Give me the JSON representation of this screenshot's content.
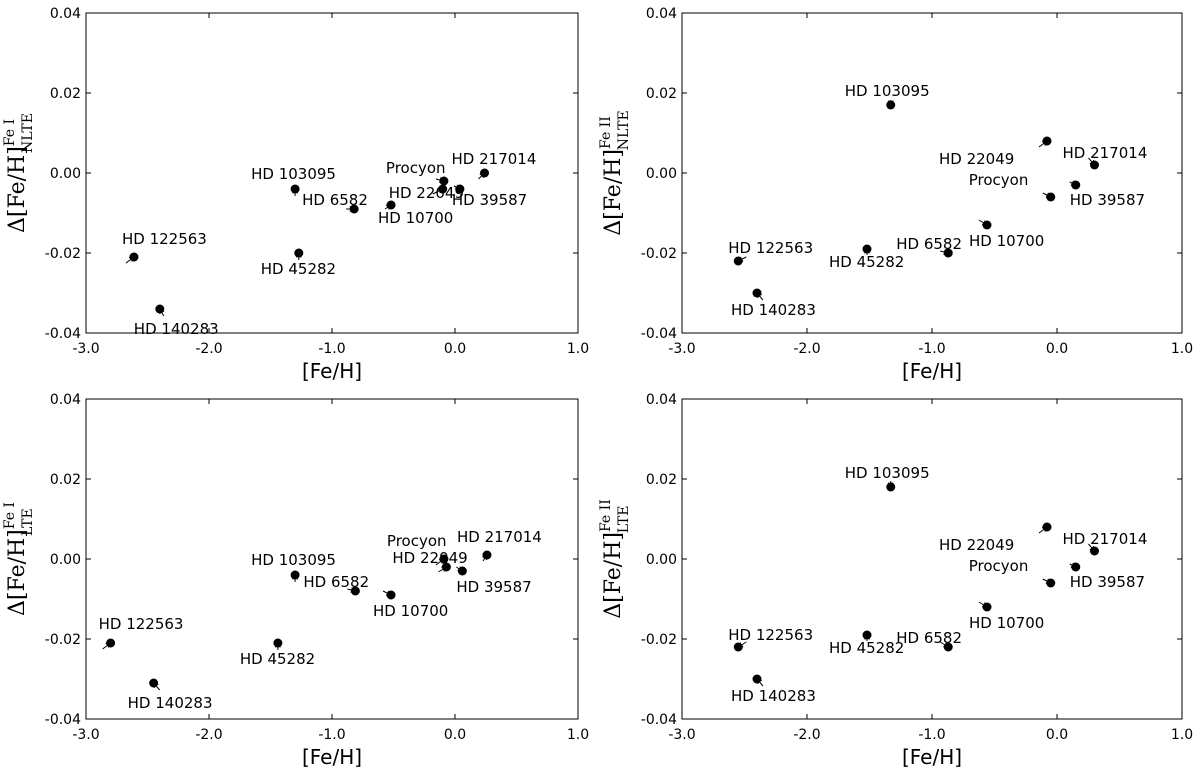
{
  "chart_data": [
    {
      "type": "scatter",
      "xlabel": "[Fe/H]",
      "ylabel": {
        "prefix": "Δ[Fe/H]",
        "sup": "Fe I",
        "sub": "NLTE"
      },
      "xlim": [
        -3.0,
        1.0
      ],
      "ylim": [
        -0.04,
        0.04
      ],
      "xticks": [
        -3.0,
        -2.0,
        -1.0,
        0.0,
        1.0
      ],
      "xtick_labels": [
        "-3.0",
        "-2.0",
        "-1.0",
        "0.0",
        "1.0"
      ],
      "yticks": [
        -0.04,
        -0.02,
        0.0,
        0.02,
        0.04
      ],
      "ytick_labels": [
        "-0.04",
        "-0.02",
        "0.00",
        "0.02",
        "0.04"
      ],
      "points": [
        {
          "name": "HD 122563",
          "x": -2.61,
          "y": -0.021
        },
        {
          "name": "HD 140283",
          "x": -2.4,
          "y": -0.034
        },
        {
          "name": "HD 103095",
          "x": -1.3,
          "y": -0.004
        },
        {
          "name": "HD 45282",
          "x": -1.27,
          "y": -0.02
        },
        {
          "name": "HD 6582",
          "x": -0.82,
          "y": -0.009
        },
        {
          "name": "HD 10700",
          "x": -0.52,
          "y": -0.008
        },
        {
          "name": "HD 22049",
          "x": -0.1,
          "y": -0.004
        },
        {
          "name": "Procyon",
          "x": -0.09,
          "y": -0.002
        },
        {
          "name": "HD 39587",
          "x": 0.04,
          "y": -0.004
        },
        {
          "name": "HD 217014",
          "x": 0.24,
          "y": 0.0
        }
      ]
    },
    {
      "type": "scatter",
      "xlabel": "[Fe/H]",
      "ylabel": {
        "prefix": "Δ[Fe/H]",
        "sup": "Fe II",
        "sub": "NLTE"
      },
      "xlim": [
        -3.0,
        1.0
      ],
      "ylim": [
        -0.04,
        0.04
      ],
      "xticks": [
        -3.0,
        -2.0,
        -1.0,
        0.0,
        1.0
      ],
      "xtick_labels": [
        "-3.0",
        "-2.0",
        "-1.0",
        "0.0",
        "1.0"
      ],
      "yticks": [
        -0.04,
        -0.02,
        0.0,
        0.02,
        0.04
      ],
      "ytick_labels": [
        "-0.04",
        "-0.02",
        "0.00",
        "0.02",
        "0.04"
      ],
      "points": [
        {
          "name": "HD 122563",
          "x": -2.55,
          "y": -0.022
        },
        {
          "name": "HD 140283",
          "x": -2.4,
          "y": -0.03
        },
        {
          "name": "HD 103095",
          "x": -1.33,
          "y": 0.017
        },
        {
          "name": "HD 45282",
          "x": -1.52,
          "y": -0.019
        },
        {
          "name": "HD 6582",
          "x": -0.87,
          "y": -0.02
        },
        {
          "name": "HD 10700",
          "x": -0.56,
          "y": -0.013
        },
        {
          "name": "HD 22049",
          "x": -0.08,
          "y": 0.008
        },
        {
          "name": "Procyon",
          "x": -0.05,
          "y": -0.006
        },
        {
          "name": "HD 39587",
          "x": 0.15,
          "y": -0.003
        },
        {
          "name": "HD 217014",
          "x": 0.3,
          "y": 0.002
        }
      ]
    },
    {
      "type": "scatter",
      "xlabel": "[Fe/H]",
      "ylabel": {
        "prefix": "Δ[Fe/H]",
        "sup": "Fe I",
        "sub": "LTE"
      },
      "xlim": [
        -3.0,
        1.0
      ],
      "ylim": [
        -0.04,
        0.04
      ],
      "xticks": [
        -3.0,
        -2.0,
        -1.0,
        0.0,
        1.0
      ],
      "xtick_labels": [
        "-3.0",
        "-2.0",
        "-1.0",
        "0.0",
        "1.0"
      ],
      "yticks": [
        -0.04,
        -0.02,
        0.0,
        0.02,
        0.04
      ],
      "ytick_labels": [
        "-0.04",
        "-0.02",
        "0.00",
        "0.02",
        "0.04"
      ],
      "points": [
        {
          "name": "HD 122563",
          "x": -2.8,
          "y": -0.021
        },
        {
          "name": "HD 140283",
          "x": -2.45,
          "y": -0.031
        },
        {
          "name": "HD 103095",
          "x": -1.3,
          "y": -0.004
        },
        {
          "name": "HD 45282",
          "x": -1.44,
          "y": -0.021
        },
        {
          "name": "HD 6582",
          "x": -0.81,
          "y": -0.008
        },
        {
          "name": "HD 10700",
          "x": -0.52,
          "y": -0.009
        },
        {
          "name": "HD 22049",
          "x": -0.07,
          "y": -0.002
        },
        {
          "name": "Procyon",
          "x": -0.09,
          "y": 0.0
        },
        {
          "name": "HD 39587",
          "x": 0.06,
          "y": -0.003
        },
        {
          "name": "HD 217014",
          "x": 0.26,
          "y": 0.001
        }
      ]
    },
    {
      "type": "scatter",
      "xlabel": "[Fe/H]",
      "ylabel": {
        "prefix": "Δ[Fe/H]",
        "sup": "Fe II",
        "sub": "LTE"
      },
      "xlim": [
        -3.0,
        1.0
      ],
      "ylim": [
        -0.04,
        0.04
      ],
      "xticks": [
        -3.0,
        -2.0,
        -1.0,
        0.0,
        1.0
      ],
      "xtick_labels": [
        "-3.0",
        "-2.0",
        "-1.0",
        "0.0",
        "1.0"
      ],
      "yticks": [
        -0.04,
        -0.02,
        0.0,
        0.02,
        0.04
      ],
      "ytick_labels": [
        "-0.04",
        "-0.02",
        "0.00",
        "0.02",
        "0.04"
      ],
      "points": [
        {
          "name": "HD 122563",
          "x": -2.55,
          "y": -0.022
        },
        {
          "name": "HD 140283",
          "x": -2.4,
          "y": -0.03
        },
        {
          "name": "HD 103095",
          "x": -1.33,
          "y": 0.018
        },
        {
          "name": "HD 45282",
          "x": -1.52,
          "y": -0.019
        },
        {
          "name": "HD 6582",
          "x": -0.87,
          "y": -0.022
        },
        {
          "name": "HD 10700",
          "x": -0.56,
          "y": -0.012
        },
        {
          "name": "HD 22049",
          "x": -0.08,
          "y": 0.008
        },
        {
          "name": "Procyon",
          "x": -0.05,
          "y": -0.006
        },
        {
          "name": "HD 39587",
          "x": 0.15,
          "y": -0.002
        },
        {
          "name": "HD 217014",
          "x": 0.3,
          "y": 0.002
        }
      ]
    }
  ]
}
